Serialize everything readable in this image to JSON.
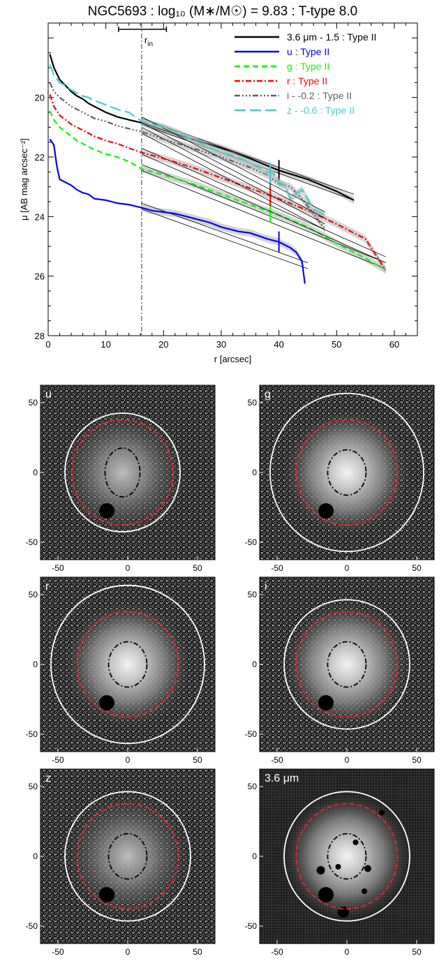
{
  "chart_data": [
    {
      "type": "line",
      "title": "NGC5693 : log₁₀ (M∗/M☉) = 9.83 : T-type 8.0",
      "xlabel": "r [arcsec]",
      "ylabel": "μ [AB mag arcsec⁻²]",
      "xlim": [
        0,
        64
      ],
      "ylim": [
        28,
        17.5
      ],
      "y_inverted": true,
      "x_ticks": [
        "0",
        "10",
        "20",
        "30",
        "40",
        "50",
        "60"
      ],
      "y_ticks": [
        "20",
        "22",
        "24",
        "26",
        "28"
      ],
      "rin_label": "r",
      "rin_sub": "in",
      "rin_value": 16.2,
      "rin_errbar": [
        12.2,
        20.5
      ],
      "legend_position": "top-right",
      "series": [
        {
          "name": "3.6 μm - 1.5 : Type II",
          "color": "#000000",
          "dash": "",
          "x": [
            0.3,
            1,
            2,
            3,
            4,
            5,
            6,
            7,
            8,
            10,
            12,
            14,
            16.2,
            20,
            25,
            30,
            35,
            40,
            45,
            50,
            53
          ],
          "y": [
            18.55,
            19.0,
            19.4,
            19.6,
            19.8,
            19.95,
            20.05,
            20.2,
            20.3,
            20.5,
            20.65,
            20.75,
            20.85,
            21.1,
            21.4,
            21.7,
            22.05,
            22.45,
            22.75,
            23.15,
            23.45
          ],
          "model_x": [
            16.2,
            53
          ],
          "model_y": [
            20.8,
            23.35
          ],
          "break_r": 40.0
        },
        {
          "name": "u : Type II",
          "color": "#0000ff",
          "dash": "",
          "x": [
            0.3,
            1,
            1.5,
            2,
            3,
            4,
            5,
            6,
            7,
            8,
            10,
            12,
            14,
            16.2,
            18,
            20,
            22,
            25,
            28,
            30,
            33,
            35,
            38,
            40,
            42,
            43,
            44,
            44.5
          ],
          "y": [
            21.4,
            21.6,
            22.3,
            22.75,
            22.85,
            22.95,
            23.1,
            23.2,
            23.25,
            23.4,
            23.45,
            23.55,
            23.6,
            23.7,
            23.8,
            23.85,
            23.9,
            24.05,
            24.2,
            24.35,
            24.5,
            24.55,
            24.75,
            24.85,
            25.05,
            25.2,
            25.5,
            26.25
          ],
          "model_x": [
            16.2,
            45
          ],
          "model_y": [
            23.65,
            25.65
          ],
          "break_r": 40.0
        },
        {
          "name": "g : Type II",
          "color": "#00ff00",
          "dash": "8,5",
          "x": [
            0.3,
            1,
            2,
            3,
            4,
            5,
            6,
            7,
            8,
            10,
            12,
            14,
            16.2,
            20,
            25,
            30,
            35,
            40,
            45,
            50,
            55,
            58.5
          ],
          "y": [
            20.45,
            20.75,
            21.0,
            21.15,
            21.3,
            21.45,
            21.55,
            21.65,
            21.75,
            21.9,
            22.0,
            22.15,
            22.4,
            22.6,
            22.9,
            23.25,
            23.6,
            23.95,
            24.35,
            24.9,
            25.4,
            25.8
          ],
          "model_x": [
            16.2,
            58.5
          ],
          "model_y": [
            22.35,
            25.65
          ],
          "break_r": 38.5
        },
        {
          "name": "r : Type II",
          "color": "#ff0000",
          "dash": "8,3,2,3",
          "x": [
            0.3,
            1,
            2,
            3,
            4,
            5,
            6,
            7,
            8,
            10,
            12,
            14,
            16.2,
            20,
            25,
            30,
            35,
            40,
            45,
            50,
            55,
            58.5
          ],
          "y": [
            19.9,
            20.3,
            20.6,
            20.75,
            20.9,
            21.0,
            21.1,
            21.2,
            21.3,
            21.45,
            21.55,
            21.7,
            21.85,
            22.05,
            22.35,
            22.7,
            23.05,
            23.4,
            23.8,
            24.25,
            24.75,
            25.8
          ],
          "model_x": [
            16.2,
            58.5
          ],
          "model_y": [
            21.8,
            25.45
          ],
          "break_r": 38.5
        },
        {
          "name": "i - -0.2 : Type II",
          "color": "#606060",
          "dash": "8,3,2,3,2,3,2,3",
          "x": [
            0.3,
            1,
            2,
            3,
            4,
            5,
            6,
            7,
            8,
            10,
            12,
            14,
            16.2,
            20,
            25,
            30,
            35,
            38,
            40,
            42,
            44,
            46,
            48
          ],
          "y": [
            19.5,
            19.8,
            20.0,
            20.15,
            20.3,
            20.4,
            20.5,
            20.6,
            20.7,
            20.8,
            20.95,
            21.05,
            21.15,
            21.4,
            21.7,
            22.0,
            22.35,
            22.6,
            22.9,
            23.0,
            23.4,
            23.9,
            24.45
          ],
          "model_x": [
            16.2,
            48
          ],
          "model_y": [
            21.1,
            24.35
          ],
          "break_r": 38.5
        },
        {
          "name": "z - -0.6 : Type II",
          "color": "#40d0d0",
          "dash": "16,6",
          "x": [
            0.3,
            1,
            2,
            3,
            4,
            5,
            6,
            7,
            8,
            10,
            12,
            14,
            16.2,
            18,
            20,
            22,
            25,
            28,
            30,
            32,
            35,
            38,
            39,
            40,
            41,
            42,
            44,
            46,
            48
          ],
          "y": [
            18.9,
            19.25,
            19.5,
            19.6,
            19.75,
            19.85,
            19.95,
            20.0,
            20.1,
            20.25,
            20.4,
            20.5,
            20.8,
            20.9,
            21.0,
            21.15,
            21.4,
            21.7,
            21.85,
            21.95,
            22.2,
            22.5,
            22.55,
            22.85,
            22.95,
            23.4,
            23.1,
            23.75,
            23.95
          ],
          "model_x": [
            16.2,
            48
          ],
          "model_y": [
            20.75,
            23.95
          ],
          "break_r": 38.5
        }
      ]
    },
    {
      "type": "image",
      "panels": [
        {
          "label": "u",
          "xticks": [
            "-50",
            "0",
            "50"
          ],
          "yticks": [
            "50",
            "0",
            "-50"
          ]
        },
        {
          "label": "g",
          "xticks": [
            "-50",
            "0",
            "50"
          ],
          "yticks": [
            "50",
            "0",
            "-50"
          ]
        },
        {
          "label": "r",
          "xticks": [
            "-50",
            "0",
            "50"
          ],
          "yticks": [
            "50",
            "0",
            "-50"
          ]
        },
        {
          "label": "i",
          "xticks": [
            "-50",
            "0",
            "50"
          ],
          "yticks": [
            "50",
            "0",
            "-50"
          ]
        },
        {
          "label": "z",
          "xticks": [
            "-50",
            "0",
            "50"
          ],
          "yticks": [
            "50",
            "0",
            "-50"
          ]
        },
        {
          "label": "3.6 μm",
          "xticks": [
            "-50",
            "0",
            "50"
          ],
          "yticks": [
            "50",
            "0",
            "-50"
          ]
        }
      ]
    }
  ]
}
